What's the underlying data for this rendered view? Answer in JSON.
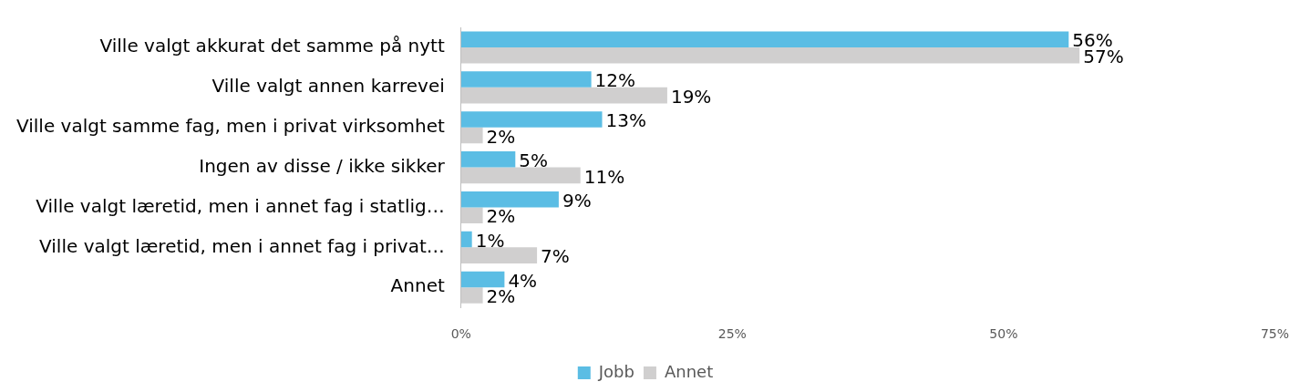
{
  "chart_data": {
    "type": "bar",
    "orientation": "horizontal",
    "categories": [
      "Ville valgt akkurat det samme på nytt",
      "Ville valgt annen karrevei",
      "Ville valgt samme fag, men i privat virksomhet",
      "Ingen av disse / ikke sikker",
      "Ville valgt læretid, men i annet fag i statlig…",
      "Ville valgt læretid, men i annet fag i privat…",
      "Annet"
    ],
    "series": [
      {
        "name": "Jobb",
        "color": "#5bbde4",
        "values": [
          56,
          12,
          13,
          5,
          9,
          1,
          4
        ],
        "value_labels": [
          "56%",
          "12%",
          "13%",
          "5%",
          "9%",
          "1%",
          "4%"
        ]
      },
      {
        "name": "Annet",
        "color": "#d0cfcf",
        "values": [
          57,
          19,
          2,
          11,
          2,
          7,
          2
        ],
        "value_labels": [
          "57%",
          "19%",
          "2%",
          "11%",
          "2%",
          "7%",
          "2%"
        ]
      }
    ],
    "xlim": [
      0,
      75
    ],
    "xticks": [
      {
        "value": 0,
        "label": "0%"
      },
      {
        "value": 25,
        "label": "25%"
      },
      {
        "value": 50,
        "label": "50%"
      },
      {
        "value": 75,
        "label": "75%"
      }
    ],
    "legend": "bottom"
  }
}
